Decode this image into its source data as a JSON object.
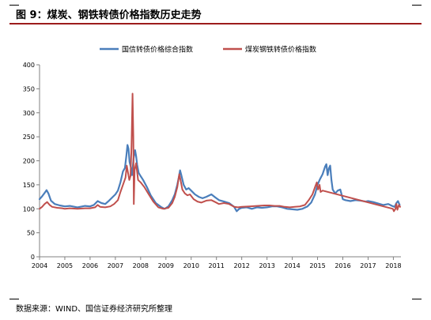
{
  "figure": {
    "title": "图 9：煤炭、钢铁转债价格指数历史走势",
    "source": "数据来源：WIND、国信证券经济研究所整理"
  },
  "chart_data": {
    "type": "line",
    "title": "",
    "xlabel": "",
    "ylabel": "",
    "xlim": [
      2004,
      2018.3
    ],
    "ylim": [
      0,
      400
    ],
    "yticks": [
      0,
      50,
      100,
      150,
      200,
      250,
      300,
      350,
      400
    ],
    "xtick_labels": [
      "2004",
      "2005",
      "2006",
      "2007",
      "2008",
      "2009",
      "2010",
      "2011",
      "2012",
      "2013",
      "2014",
      "2015",
      "2016",
      "2017",
      "2018"
    ],
    "grid": false,
    "legend_position": "top",
    "series": [
      {
        "name": "国信转债价格综合指数",
        "color": "#4a7ebb",
        "points": [
          [
            2004.0,
            120
          ],
          [
            2004.1,
            126
          ],
          [
            2004.2,
            133
          ],
          [
            2004.28,
            139
          ],
          [
            2004.35,
            132
          ],
          [
            2004.45,
            117
          ],
          [
            2004.6,
            110
          ],
          [
            2004.8,
            107
          ],
          [
            2005.0,
            105
          ],
          [
            2005.2,
            106
          ],
          [
            2005.5,
            103
          ],
          [
            2005.8,
            106
          ],
          [
            2006.0,
            105
          ],
          [
            2006.15,
            108
          ],
          [
            2006.3,
            116
          ],
          [
            2006.45,
            112
          ],
          [
            2006.6,
            110
          ],
          [
            2006.75,
            117
          ],
          [
            2006.9,
            125
          ],
          [
            2007.0,
            130
          ],
          [
            2007.1,
            138
          ],
          [
            2007.2,
            155
          ],
          [
            2007.3,
            178
          ],
          [
            2007.38,
            185
          ],
          [
            2007.44,
            212
          ],
          [
            2007.48,
            233
          ],
          [
            2007.52,
            225
          ],
          [
            2007.56,
            198
          ],
          [
            2007.62,
            185
          ],
          [
            2007.66,
            170
          ],
          [
            2007.72,
            205
          ],
          [
            2007.78,
            222
          ],
          [
            2007.82,
            210
          ],
          [
            2007.86,
            192
          ],
          [
            2007.92,
            175
          ],
          [
            2008.0,
            168
          ],
          [
            2008.1,
            160
          ],
          [
            2008.25,
            145
          ],
          [
            2008.4,
            128
          ],
          [
            2008.6,
            112
          ],
          [
            2008.8,
            104
          ],
          [
            2008.95,
            100
          ],
          [
            2009.1,
            105
          ],
          [
            2009.25,
            118
          ],
          [
            2009.35,
            130
          ],
          [
            2009.45,
            150
          ],
          [
            2009.52,
            168
          ],
          [
            2009.56,
            180
          ],
          [
            2009.6,
            172
          ],
          [
            2009.7,
            150
          ],
          [
            2009.8,
            140
          ],
          [
            2009.9,
            143
          ],
          [
            2010.0,
            138
          ],
          [
            2010.15,
            130
          ],
          [
            2010.3,
            125
          ],
          [
            2010.45,
            122
          ],
          [
            2010.6,
            125
          ],
          [
            2010.8,
            130
          ],
          [
            2010.95,
            124
          ],
          [
            2011.1,
            118
          ],
          [
            2011.3,
            115
          ],
          [
            2011.5,
            112
          ],
          [
            2011.7,
            104
          ],
          [
            2011.8,
            95
          ],
          [
            2011.9,
            100
          ],
          [
            2012.0,
            102
          ],
          [
            2012.2,
            103
          ],
          [
            2012.4,
            100
          ],
          [
            2012.6,
            103
          ],
          [
            2012.8,
            102
          ],
          [
            2013.0,
            103
          ],
          [
            2013.2,
            105
          ],
          [
            2013.4,
            105
          ],
          [
            2013.6,
            103
          ],
          [
            2013.8,
            100
          ],
          [
            2014.0,
            99
          ],
          [
            2014.2,
            98
          ],
          [
            2014.4,
            100
          ],
          [
            2014.6,
            105
          ],
          [
            2014.75,
            113
          ],
          [
            2014.9,
            130
          ],
          [
            2015.0,
            150
          ],
          [
            2015.1,
            162
          ],
          [
            2015.2,
            172
          ],
          [
            2015.3,
            188
          ],
          [
            2015.35,
            193
          ],
          [
            2015.4,
            170
          ],
          [
            2015.45,
            184
          ],
          [
            2015.5,
            190
          ],
          [
            2015.55,
            160
          ],
          [
            2015.6,
            140
          ],
          [
            2015.7,
            132
          ],
          [
            2015.8,
            138
          ],
          [
            2015.9,
            140
          ],
          [
            2016.0,
            120
          ],
          [
            2016.1,
            118
          ],
          [
            2016.3,
            116
          ],
          [
            2016.5,
            118
          ],
          [
            2016.7,
            117
          ],
          [
            2016.9,
            115
          ],
          [
            2017.0,
            116
          ],
          [
            2017.2,
            114
          ],
          [
            2017.4,
            111
          ],
          [
            2017.6,
            108
          ],
          [
            2017.8,
            110
          ],
          [
            2017.95,
            106
          ],
          [
            2018.05,
            104
          ],
          [
            2018.12,
            112
          ],
          [
            2018.18,
            116
          ],
          [
            2018.25,
            108
          ]
        ]
      },
      {
        "name": "煤炭钢铁转债价格指数",
        "color": "#c0504d",
        "points": [
          [
            2004.0,
            100
          ],
          [
            2004.1,
            104
          ],
          [
            2004.2,
            110
          ],
          [
            2004.3,
            114
          ],
          [
            2004.4,
            108
          ],
          [
            2004.5,
            104
          ],
          [
            2004.7,
            102
          ],
          [
            2004.9,
            101
          ],
          [
            2005.0,
            100
          ],
          [
            2005.2,
            101
          ],
          [
            2005.5,
            100
          ],
          [
            2005.8,
            101
          ],
          [
            2006.0,
            101
          ],
          [
            2006.2,
            103
          ],
          [
            2006.3,
            108
          ],
          [
            2006.4,
            104
          ],
          [
            2006.6,
            103
          ],
          [
            2006.8,
            105
          ],
          [
            2006.95,
            110
          ],
          [
            2007.1,
            118
          ],
          [
            2007.2,
            135
          ],
          [
            2007.3,
            150
          ],
          [
            2007.4,
            165
          ],
          [
            2007.45,
            190
          ],
          [
            2007.5,
            175
          ],
          [
            2007.55,
            160
          ],
          [
            2007.6,
            168
          ],
          [
            2007.64,
            230
          ],
          [
            2007.68,
            340
          ],
          [
            2007.71,
            250
          ],
          [
            2007.73,
            110
          ],
          [
            2007.76,
            180
          ],
          [
            2007.82,
            195
          ],
          [
            2007.9,
            160
          ],
          [
            2008.0,
            155
          ],
          [
            2008.15,
            145
          ],
          [
            2008.3,
            132
          ],
          [
            2008.5,
            115
          ],
          [
            2008.7,
            103
          ],
          [
            2008.9,
            100
          ],
          [
            2009.1,
            102
          ],
          [
            2009.25,
            112
          ],
          [
            2009.35,
            125
          ],
          [
            2009.45,
            145
          ],
          [
            2009.53,
            172
          ],
          [
            2009.58,
            160
          ],
          [
            2009.65,
            140
          ],
          [
            2009.75,
            132
          ],
          [
            2009.85,
            128
          ],
          [
            2009.95,
            130
          ],
          [
            2010.1,
            120
          ],
          [
            2010.25,
            115
          ],
          [
            2010.4,
            113
          ],
          [
            2010.6,
            117
          ],
          [
            2010.8,
            118
          ],
          [
            2010.95,
            114
          ],
          [
            2011.1,
            110
          ],
          [
            2011.3,
            112
          ],
          [
            2011.5,
            110
          ],
          [
            2011.7,
            104
          ],
          [
            2011.85,
            103
          ],
          [
            2012.0,
            104
          ],
          [
            2012.3,
            105
          ],
          [
            2012.6,
            106
          ],
          [
            2012.9,
            107
          ],
          [
            2013.1,
            107
          ],
          [
            2013.3,
            106
          ],
          [
            2013.5,
            106
          ],
          [
            2013.7,
            104
          ],
          [
            2013.9,
            103
          ],
          [
            2014.1,
            104
          ],
          [
            2014.3,
            105
          ],
          [
            2014.5,
            108
          ],
          [
            2014.65,
            118
          ],
          [
            2014.8,
            130
          ],
          [
            2014.9,
            145
          ],
          [
            2014.97,
            155
          ],
          [
            2015.02,
            140
          ],
          [
            2015.08,
            150
          ],
          [
            2015.12,
            135
          ],
          [
            2015.2,
            138
          ],
          [
            2017.98,
            100
          ],
          [
            2018.02,
            95
          ],
          [
            2018.08,
            100
          ],
          [
            2018.12,
            110
          ],
          [
            2018.16,
            98
          ],
          [
            2018.22,
            108
          ],
          [
            2018.27,
            104
          ]
        ]
      }
    ]
  }
}
